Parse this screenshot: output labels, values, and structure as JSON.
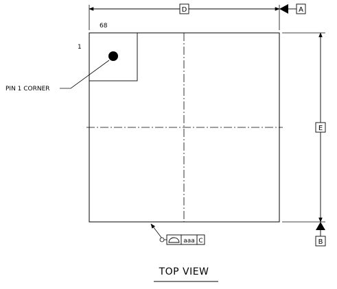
{
  "drawing": {
    "dimensions": {
      "width_label": "D",
      "height_label": "E",
      "datum_a": "A",
      "datum_b": "B"
    },
    "pin_count_label": "68",
    "pin_one_number": "1",
    "pin_one_callout": "PIN 1 CORNER",
    "flatness_control": {
      "tolerance": "aaa",
      "datum": "C"
    },
    "view_title": "TOP VIEW"
  }
}
